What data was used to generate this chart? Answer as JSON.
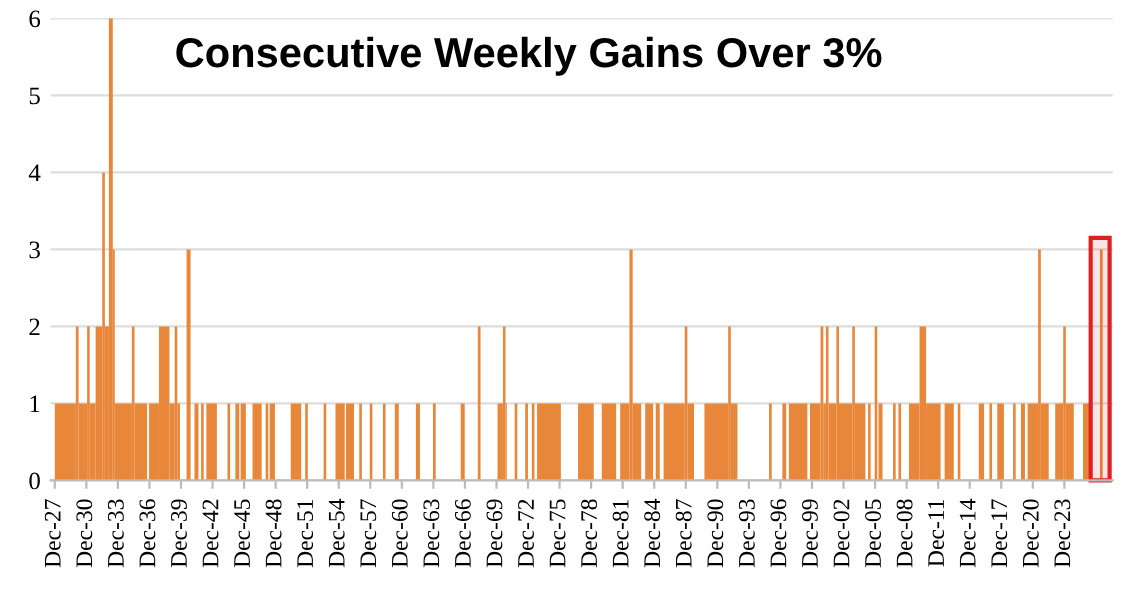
{
  "chart_data": {
    "type": "histogram",
    "title": "Consecutive Weekly Gains Over 3%",
    "color": "#e8873a",
    "bins": [
      "1928-01-01",
      "1930-01-01",
      "1930-04-05",
      "1931-01-27",
      "1931-04-28",
      "1931-11-18",
      "1932-07-06",
      "1932-10-05",
      "1933-02-21",
      "1933-07-06",
      "1933-09-13",
      "1935-05-01",
      "1935-07-31",
      "1936-10-09",
      "1936-12-17",
      "1937-11-25",
      "1938-11-25",
      "1939-05-27",
      "1939-08-25",
      "1939-11-25",
      "1940-07-13",
      "1940-11-29",
      "1941-04-13",
      "1941-08-29",
      "1941-11-29",
      "1942-02-27",
      "1942-05-31",
      "1943-05-31",
      "1944-06-03",
      "1944-09-02",
      "1945-03-03",
      "1945-07-16",
      "1945-09-02",
      "1946-03-03",
      "1946-10-20",
      "1947-09-02",
      "1948-01-19",
      "1948-04-20",
      "1948-06-07",
      "1948-12-06",
      "1950-06-07",
      "1951-06-07",
      "1951-10-23",
      "1952-01-23",
      "1953-07-24",
      "1953-10-23",
      "1954-09-09",
      "1955-07-27",
      "1955-09-09",
      "1956-06-14",
      "1956-12-13",
      "1957-03-14",
      "1957-12-13",
      "1958-03-14",
      "1959-03-14",
      "1959-06-14",
      "1960-05-01",
      "1960-09-16",
      "1962-05-04",
      "1962-09-20",
      "1963-12-17",
      "1964-03-21",
      "1966-08-07",
      "1966-12-24",
      "1968-03-21",
      "1968-06-25",
      "1970-02-05",
      "1970-08-11",
      "1970-11-10",
      "1970-12-24",
      "1971-09-24",
      "1971-12-24",
      "1972-09-24",
      "1972-12-28",
      "1973-05-12",
      "1973-08-11",
      "1973-11-10",
      "1976-02-14",
      "1977-10-02",
      "1979-04-01",
      "1980-01-04",
      "1981-05-19",
      "1981-10-05",
      "1982-08-22",
      "1982-12-13",
      "1983-10-05",
      "1984-02-21",
      "1984-11-21",
      "1985-02-21",
      "1985-07-09",
      "1985-11-21",
      "1987-11-25",
      "1988-02-24",
      "1988-10-12",
      "1989-10-09",
      "1992-01-12",
      "1992-04-13",
      "1992-11-29",
      "1995-12-02",
      "1996-03-03",
      "1997-03-07",
      "1997-07-20",
      "1997-10-20",
      "1999-07-24",
      "1999-10-23",
      "2000-10-23",
      "2001-01-27",
      "2001-04-28",
      "2001-07-27",
      "2002-04-28",
      "2002-07-27",
      "2003-10-31",
      "2004-01-30",
      "2005-01-30",
      "2005-05-01",
      "2005-07-31",
      "2005-12-17",
      "2006-03-18",
      "2006-05-01",
      "2006-09-16",
      "2007-09-16",
      "2007-12-17",
      "2008-03-21",
      "2008-06-21",
      "2009-03-21",
      "2010-03-25",
      "2010-11-07",
      "2012-03-25",
      "2012-08-11",
      "2013-06-25",
      "2013-11-10",
      "2014-02-09",
      "2015-11-10",
      "2016-05-12",
      "2016-11-14",
      "2017-02-14",
      "2017-08-14",
      "2018-04-01",
      "2019-02-14",
      "2019-05-16",
      "2019-11-14",
      "2020-04-01",
      "2020-07-02",
      "2021-07-02",
      "2021-10-05",
      "2022-07-06",
      "2023-02-16",
      "2023-11-21",
      "2024-02-21",
      "2024-11-21",
      "2025-10-09",
      "2026-07-09",
      "2027-05-22",
      "2027-08-22"
    ],
    "values": [
      1,
      2,
      1,
      2,
      1,
      2,
      4,
      2,
      6,
      3,
      1,
      2,
      1,
      0,
      1,
      2,
      1,
      2,
      1,
      0,
      3,
      0,
      1,
      0,
      1,
      0,
      1,
      0,
      1,
      0,
      1,
      0,
      1,
      0,
      1,
      0,
      1,
      0,
      1,
      0,
      1,
      0,
      1,
      0,
      1,
      0,
      1,
      0,
      1,
      0,
      1,
      0,
      1,
      0,
      1,
      0,
      1,
      0,
      1,
      0,
      1,
      0,
      1,
      0,
      2,
      0,
      1,
      2,
      1,
      0,
      1,
      0,
      1,
      0,
      1,
      0,
      1,
      0,
      1,
      0,
      1,
      0,
      1,
      3,
      1,
      0,
      1,
      0,
      1,
      0,
      1,
      2,
      1,
      0,
      1,
      2,
      1,
      0,
      1,
      0,
      1,
      0,
      1,
      0,
      1,
      2,
      1,
      2,
      1,
      2,
      1,
      2,
      1,
      0,
      1,
      0,
      2,
      0,
      1,
      0,
      1,
      0,
      1,
      0,
      1,
      2,
      1,
      0,
      1,
      0,
      1,
      0,
      1,
      0,
      1,
      0,
      1,
      0,
      1,
      0,
      1,
      0,
      1,
      3,
      1,
      0,
      1,
      2,
      1,
      0,
      1,
      0,
      3
    ],
    "xlim": [
      "1927-08-07",
      "2028-08-07"
    ],
    "ylim": [
      0,
      6
    ],
    "yticks": [
      0,
      1,
      2,
      3,
      4,
      5,
      6
    ],
    "xticks": [
      {
        "value": "1927-12-31",
        "label": "Dec-27"
      },
      {
        "value": "1930-12-31",
        "label": "Dec-30"
      },
      {
        "value": "1933-12-31",
        "label": "Dec-33"
      },
      {
        "value": "1936-12-31",
        "label": "Dec-36"
      },
      {
        "value": "1939-12-31",
        "label": "Dec-39"
      },
      {
        "value": "1942-12-31",
        "label": "Dec-42"
      },
      {
        "value": "1945-12-31",
        "label": "Dec-45"
      },
      {
        "value": "1948-12-31",
        "label": "Dec-48"
      },
      {
        "value": "1951-12-31",
        "label": "Dec-51"
      },
      {
        "value": "1954-12-31",
        "label": "Dec-54"
      },
      {
        "value": "1957-12-31",
        "label": "Dec-57"
      },
      {
        "value": "1960-12-31",
        "label": "Dec-60"
      },
      {
        "value": "1963-12-31",
        "label": "Dec-63"
      },
      {
        "value": "1966-12-31",
        "label": "Dec-66"
      },
      {
        "value": "1969-12-31",
        "label": "Dec-69"
      },
      {
        "value": "1972-12-31",
        "label": "Dec-72"
      },
      {
        "value": "1975-12-31",
        "label": "Dec-75"
      },
      {
        "value": "1978-12-31",
        "label": "Dec-78"
      },
      {
        "value": "1981-12-31",
        "label": "Dec-81"
      },
      {
        "value": "1984-12-31",
        "label": "Dec-84"
      },
      {
        "value": "1987-12-31",
        "label": "Dec-87"
      },
      {
        "value": "1990-12-31",
        "label": "Dec-90"
      },
      {
        "value": "1993-12-31",
        "label": "Dec-93"
      },
      {
        "value": "1996-12-31",
        "label": "Dec-96"
      },
      {
        "value": "1999-12-31",
        "label": "Dec-99"
      },
      {
        "value": "2002-12-31",
        "label": "Dec-02"
      },
      {
        "value": "2005-12-31",
        "label": "Dec-05"
      },
      {
        "value": "2008-12-31",
        "label": "Dec-08"
      },
      {
        "value": "2011-12-31",
        "label": "Dec-11"
      },
      {
        "value": "2014-12-31",
        "label": "Dec-14"
      },
      {
        "value": "2017-12-31",
        "label": "Dec-17"
      },
      {
        "value": "2020-12-31",
        "label": "Dec-20"
      },
      {
        "value": "2023-12-31",
        "label": "Dec-23"
      }
    ],
    "bands": [
      {
        "axis": "x",
        "from": "2026-07-02",
        "to": "2028-04-20",
        "color": "#e02020"
      }
    ],
    "grid": "y"
  }
}
